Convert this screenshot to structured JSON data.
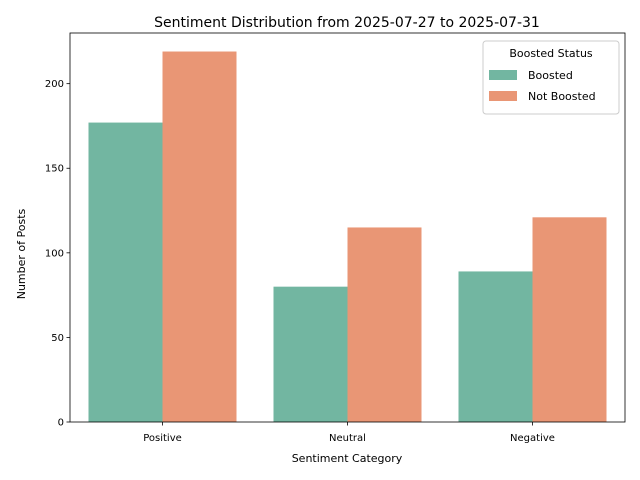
{
  "chart_data": {
    "type": "bar",
    "title": "Sentiment Distribution from 2025-07-27 to 2025-07-31",
    "xlabel": "Sentiment Category",
    "ylabel": "Number of Posts",
    "categories": [
      "Positive",
      "Neutral",
      "Negative"
    ],
    "series": [
      {
        "name": "Boosted",
        "color": "#72b6a1",
        "values": [
          177,
          80,
          89
        ]
      },
      {
        "name": "Not Boosted",
        "color": "#e99675",
        "values": [
          219,
          115,
          121
        ]
      }
    ],
    "ylim": [
      0,
      229.95
    ],
    "yticks": [
      0,
      50,
      100,
      150,
      200
    ],
    "grid": false,
    "legend": {
      "title": "Boosted Status",
      "placement": "top-right"
    }
  }
}
